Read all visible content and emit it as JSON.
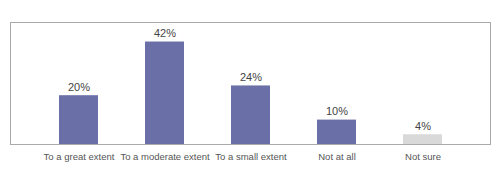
{
  "chart_data": {
    "type": "bar",
    "categories": [
      "To a great extent",
      "To a moderate extent",
      "To a small extent",
      "Not at all",
      "Not sure"
    ],
    "values": [
      20,
      42,
      24,
      10,
      4
    ],
    "value_labels": [
      "20%",
      "42%",
      "24%",
      "10%",
      "4%"
    ],
    "colors": [
      "#6b6fa8",
      "#6b6fa8",
      "#6b6fa8",
      "#6b6fa8",
      "#d9d9d9"
    ],
    "ylim": [
      0,
      50
    ],
    "grid": false,
    "data_labels": true,
    "tick_labels": "x"
  }
}
